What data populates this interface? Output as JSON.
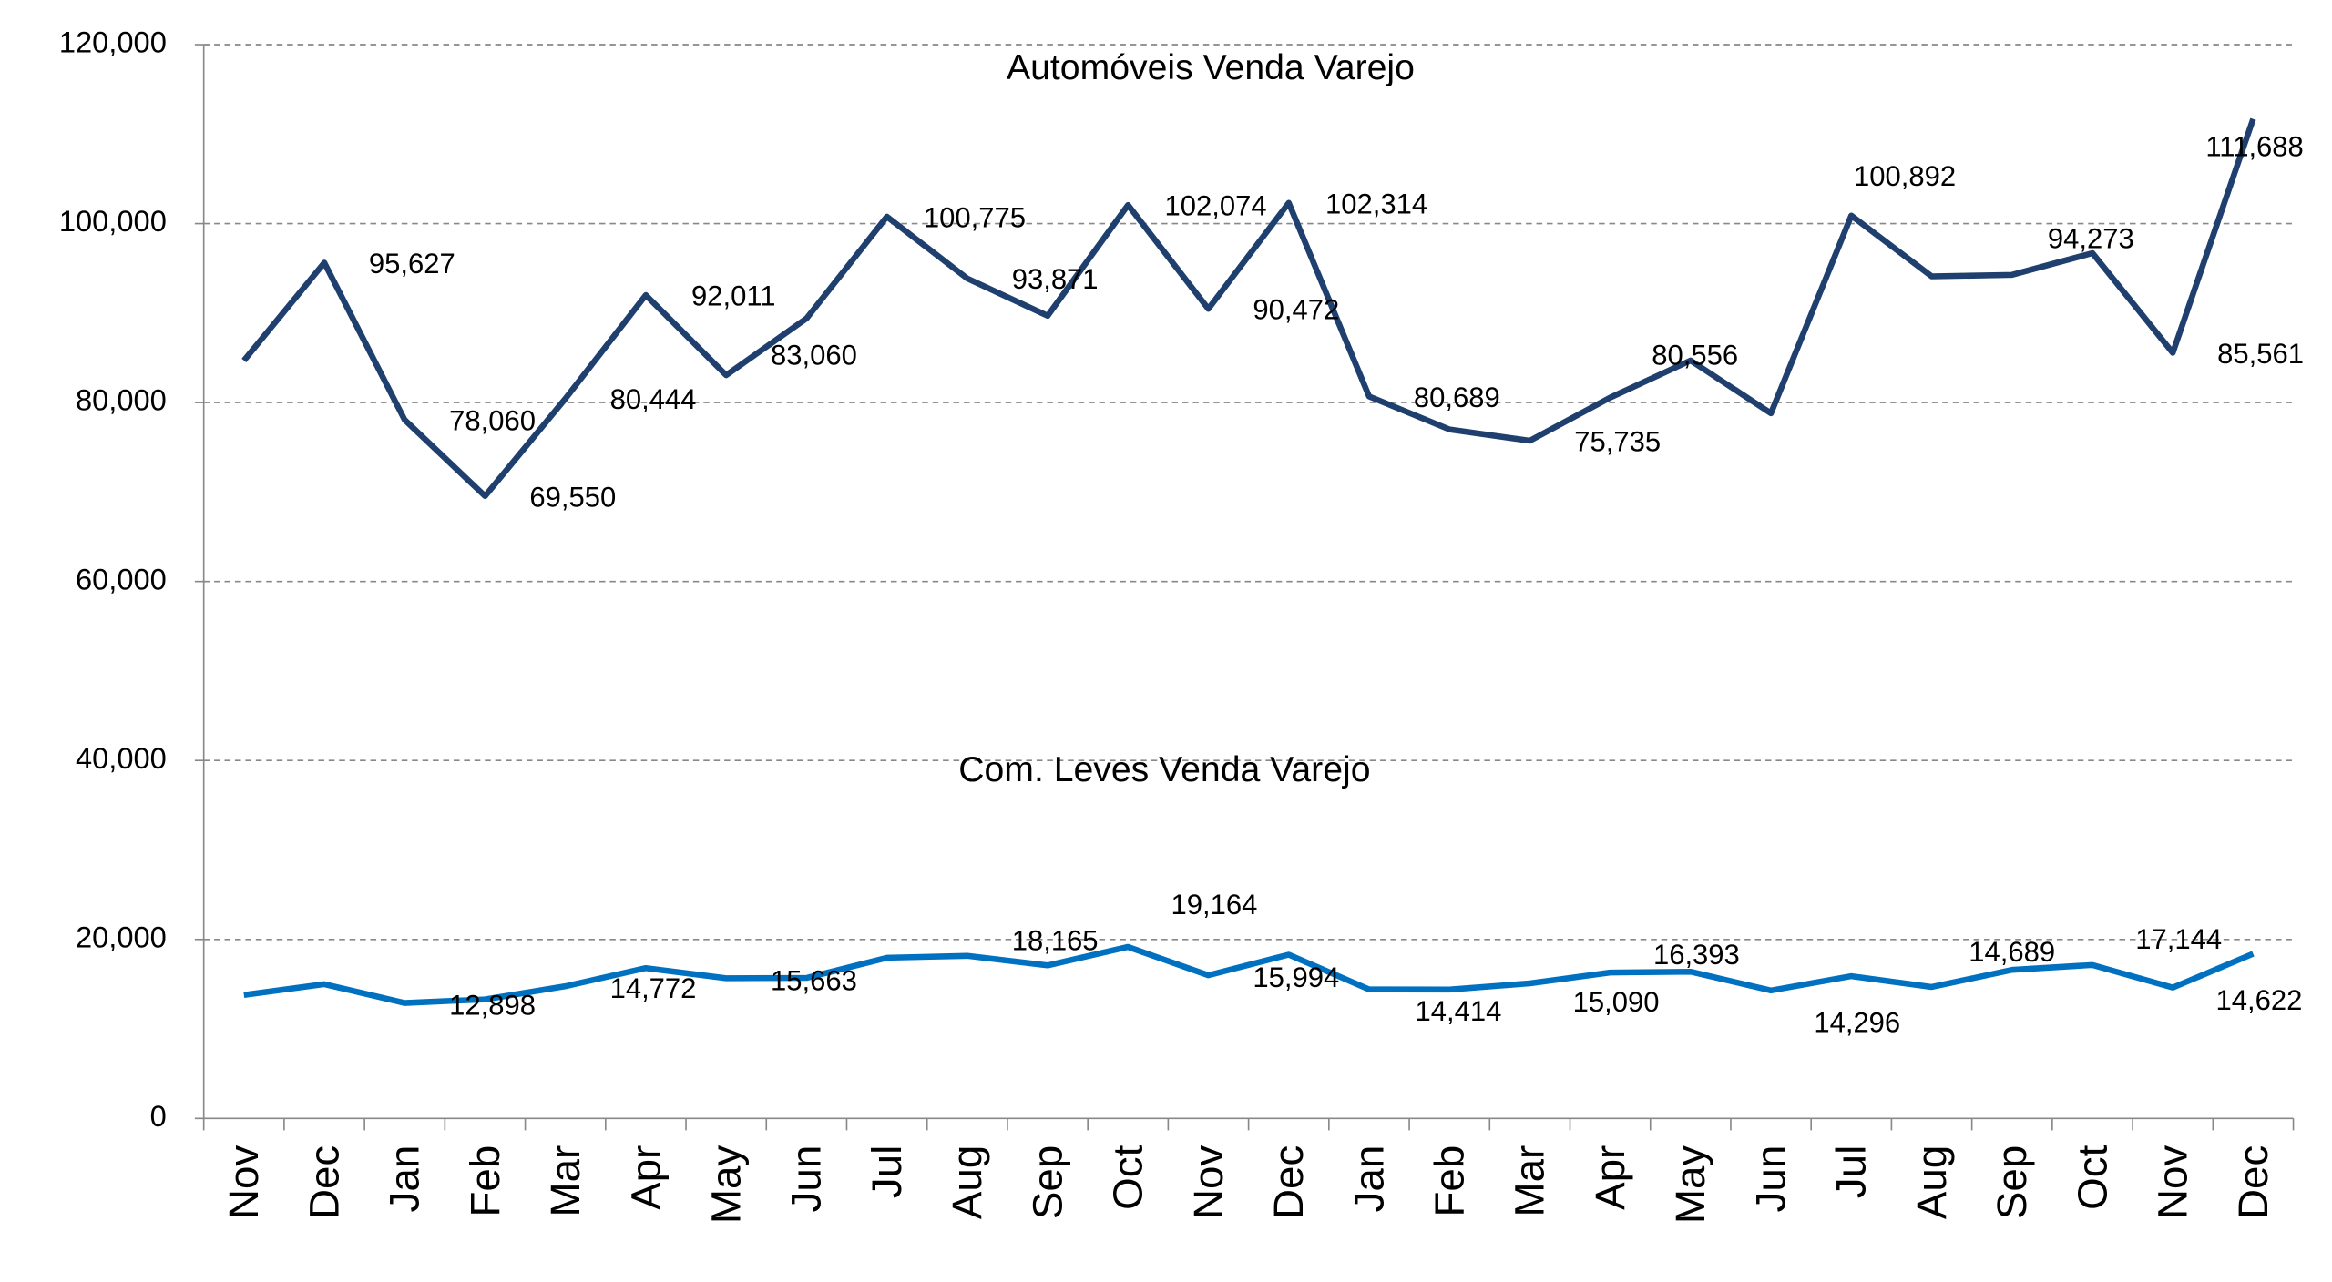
{
  "chart_data": {
    "type": "line",
    "categories": [
      "Nov",
      "Dec",
      "Jan",
      "Feb",
      "Mar",
      "Apr",
      "May",
      "Jun",
      "Jul",
      "Aug",
      "Sep",
      "Oct",
      "Nov",
      "Dec",
      "Jan",
      "Feb",
      "Mar",
      "Apr",
      "May",
      "Jun",
      "Jul",
      "Aug",
      "Sep",
      "Oct",
      "Nov",
      "Dec"
    ],
    "series": [
      {
        "name": "Automóveis Venda Varejo",
        "color": "#1f3f6e",
        "values": [
          84700,
          95627,
          78060,
          69550,
          80444,
          92011,
          83060,
          89400,
          100775,
          93871,
          89700,
          102074,
          90472,
          102314,
          80689,
          77000,
          75735,
          80556,
          84700,
          78800,
          100892,
          94100,
          94273,
          96700,
          85561,
          111688
        ],
        "value_labels": [
          null,
          "95,627",
          "78,060",
          "69,550",
          "80,444",
          "92,011",
          "83,060",
          null,
          "100,775",
          "93,871",
          null,
          "102,074",
          "90,472",
          "102,314",
          "80,689",
          null,
          "75,735",
          "80,556",
          null,
          null,
          "100,892",
          null,
          "94,273",
          null,
          "85,561",
          "111,688"
        ]
      },
      {
        "name": "Com. Leves Venda Varejo",
        "color": "#0070c0",
        "values": [
          13800,
          15000,
          12898,
          13300,
          14772,
          16800,
          15663,
          15700,
          17950,
          18165,
          17100,
          19164,
          15994,
          18300,
          14414,
          14400,
          15090,
          16300,
          16393,
          14296,
          15900,
          14689,
          16600,
          17144,
          14622,
          18400
        ],
        "value_labels": [
          null,
          null,
          "12,898",
          null,
          "14,772",
          null,
          "15,663",
          null,
          null,
          "18,165",
          null,
          "19,164",
          "15,994",
          null,
          "14,414",
          null,
          "15,090",
          null,
          "16,393",
          "14,296",
          null,
          "14,689",
          null,
          "17,144",
          "14,622",
          null
        ]
      }
    ],
    "ylim": [
      0,
      120000
    ],
    "yticks": [
      0,
      {
        "value": 20000,
        "label": "20,000"
      },
      {
        "value": 40000,
        "label": "40,000"
      },
      {
        "value": 60000,
        "label": "60,000"
      },
      {
        "value": 80000,
        "label": "80,000"
      },
      {
        "value": 100000,
        "label": "100,000"
      },
      {
        "value": 120000,
        "label": "120,000"
      }
    ],
    "grid": true
  }
}
